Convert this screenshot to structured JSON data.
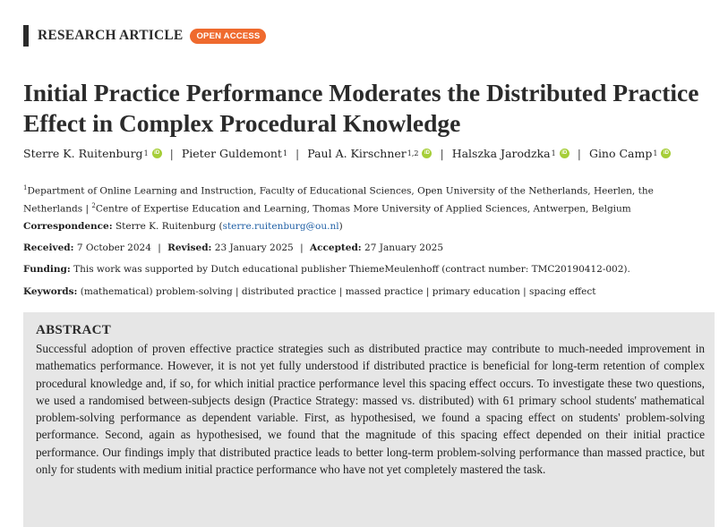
{
  "header": {
    "article_type": "RESEARCH ARTICLE",
    "badge": "OPEN ACCESS"
  },
  "title": "Initial Practice Performance Moderates the Distributed Practice Effect in Complex Procedural Knowledge",
  "authors": [
    {
      "name": "Sterre K. Ruitenburg",
      "sup": "1",
      "orcid": true
    },
    {
      "name": "Pieter Guldemont",
      "sup": "1",
      "orcid": false
    },
    {
      "name": "Paul A. Kirschner",
      "sup": "1,2",
      "orcid": true
    },
    {
      "name": "Halszka Jarodzka",
      "sup": "1",
      "orcid": true
    },
    {
      "name": "Gino Camp",
      "sup": "1",
      "orcid": true
    }
  ],
  "author_separator": "|",
  "affiliations": [
    {
      "sup": "1",
      "text": "Department of Online Learning and Instruction, Faculty of Educational Sciences, Open University of the Netherlands, Heerlen, the Netherlands"
    },
    {
      "sup": "2",
      "text": "Centre of Expertise Education and Learning, Thomas More University of Applied Sciences, Antwerpen, Belgium"
    }
  ],
  "affiliation_separator": "|",
  "correspondence": {
    "label": "Correspondence:",
    "name": "Sterre K. Ruitenburg",
    "email": "sterre.ruitenburg@ou.nl"
  },
  "dates": {
    "received_label": "Received:",
    "received": "7 October 2024",
    "revised_label": "Revised:",
    "revised": "23 January 2025",
    "accepted_label": "Accepted:",
    "accepted": "27 January 2025",
    "separator": "|"
  },
  "funding": {
    "label": "Funding:",
    "text": "This work was supported by Dutch educational publisher ThiemeMeulenhoff (contract number: TMC20190412-002)."
  },
  "keywords": {
    "label": "Keywords:",
    "text": "(mathematical) problem-solving | distributed practice | massed practice | primary education | spacing effect"
  },
  "abstract": {
    "heading": "ABSTRACT",
    "text": "Successful adoption of proven effective practice strategies such as distributed practice may contribute to much-needed improvement in mathematics performance. However, it is not yet fully understood if distributed practice is beneficial for long-term retention of complex procedural knowledge and, if so, for which initial practice performance level this spacing effect occurs. To investigate these two questions, we used a randomised between-subjects design (Practice Strategy: massed vs. distributed) with 61 primary school students' mathematical problem-solving performance as dependent variable. First, as hypothesised, we found a spacing effect on students' problem-solving performance. Second, again as hypothesised, we found that the magnitude of this spacing effect depended on their initial practice performance. Our findings imply that distributed practice leads to better long-term problem-solving performance than massed practice, but only for students with medium initial practice performance who have not yet completely mastered the task."
  },
  "colors": {
    "badge": "#ef6a2e",
    "orcid": "#a6ce39",
    "link": "#1f5fa5",
    "abstract_bg": "#e6e6e6"
  }
}
